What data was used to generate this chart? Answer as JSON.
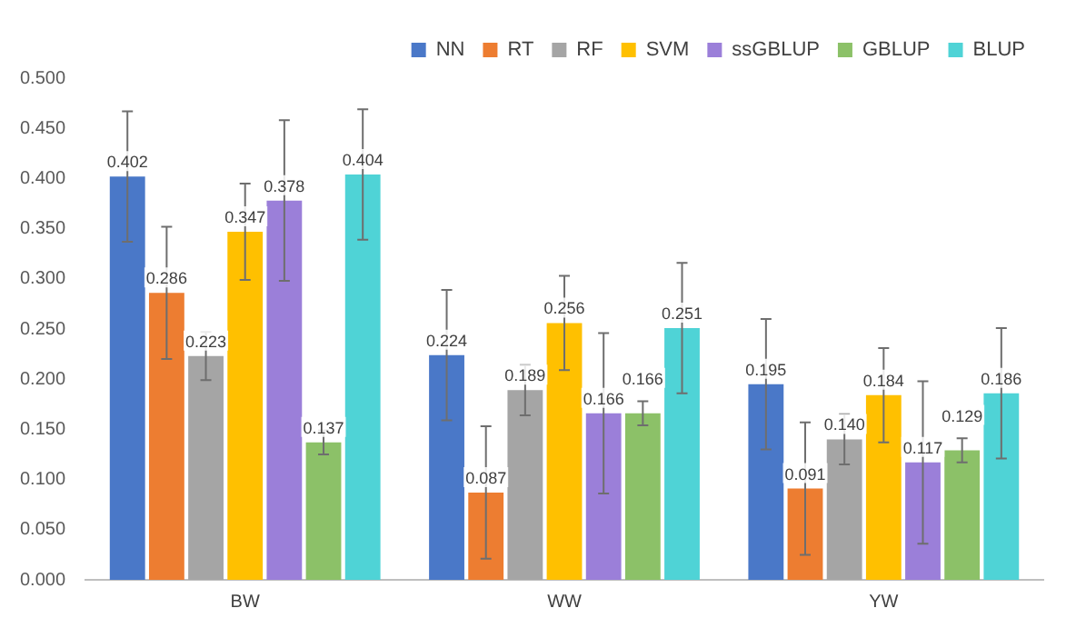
{
  "chart_data": {
    "type": "bar",
    "categories": [
      "BW",
      "WW",
      "YW"
    ],
    "series": [
      {
        "name": "NN",
        "color": "#4a78c8",
        "values": [
          0.402,
          0.224,
          0.195
        ],
        "errors": [
          0.065,
          0.065,
          0.065
        ],
        "value_labels": [
          "0.402",
          "0.224",
          "0.195"
        ]
      },
      {
        "name": "RT",
        "color": "#ed7d31",
        "values": [
          0.286,
          0.087,
          0.091
        ],
        "errors": [
          0.066,
          0.066,
          0.066
        ],
        "value_labels": [
          "0.286",
          "0.087",
          "0.091"
        ]
      },
      {
        "name": "RF",
        "color": "#a5a5a5",
        "values": [
          0.223,
          0.189,
          0.14
        ],
        "errors": [
          0.024,
          0.025,
          0.025
        ],
        "value_labels": [
          "0.223",
          "0.189",
          "0.140"
        ]
      },
      {
        "name": "SVM",
        "color": "#ffc000",
        "values": [
          0.347,
          0.256,
          0.184
        ],
        "errors": [
          0.048,
          0.047,
          0.047
        ],
        "value_labels": [
          "0.347",
          "0.256",
          "0.184"
        ]
      },
      {
        "name": "ssGBLUP",
        "color": "#9b7fd9",
        "values": [
          0.378,
          0.166,
          0.117
        ],
        "errors": [
          0.08,
          0.08,
          0.081
        ],
        "value_labels": [
          "0.378",
          "0.166",
          "0.117"
        ]
      },
      {
        "name": "GBLUP",
        "color": "#8cc168",
        "values": [
          0.137,
          0.166,
          0.129
        ],
        "errors": [
          0.012,
          0.012,
          0.012
        ],
        "value_labels": [
          "0.137",
          "0.166",
          "0.129"
        ]
      },
      {
        "name": "BLUP",
        "color": "#4fd3d6",
        "values": [
          0.404,
          0.251,
          0.186
        ],
        "errors": [
          0.065,
          0.065,
          0.065
        ],
        "value_labels": [
          "0.404",
          "0.251",
          "0.186"
        ]
      }
    ],
    "ylim": [
      0,
      0.5
    ],
    "yticks": [
      {
        "value": 0,
        "label": "0.000"
      },
      {
        "value": 0.05,
        "label": "0.050"
      },
      {
        "value": 0.1,
        "label": "0.100"
      },
      {
        "value": 0.15,
        "label": "0.150"
      },
      {
        "value": 0.2,
        "label": "0.200"
      },
      {
        "value": 0.25,
        "label": "0.250"
      },
      {
        "value": 0.3,
        "label": "0.300"
      },
      {
        "value": 0.35,
        "label": "0.350"
      },
      {
        "value": 0.4,
        "label": "0.400"
      },
      {
        "value": 0.45,
        "label": "0.450"
      },
      {
        "value": 0.5,
        "label": "0.500"
      }
    ],
    "grid": false,
    "legend": "top right"
  }
}
